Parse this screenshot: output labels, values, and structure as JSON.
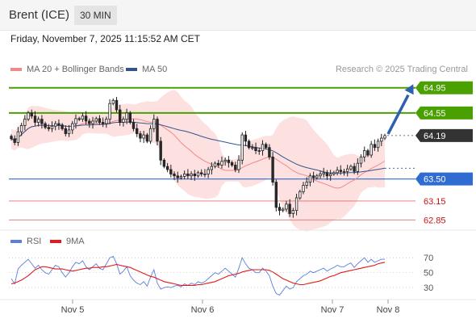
{
  "header": {
    "instrument": "Brent (ICE)",
    "timeframe": "30 MIN"
  },
  "datetime": "Friday, November 7, 2025 11:15:52 AM CET",
  "legend": {
    "ma20": {
      "label": "MA 20 + Bollinger Bands",
      "color": "#f08a8a"
    },
    "ma50": {
      "label": "MA 50",
      "color": "#35558a"
    },
    "research": "Research © 2025 Trading Central",
    "rsi": {
      "label": "RSI",
      "color": "#5b7fde"
    },
    "rsi_ma": {
      "label": "9MA",
      "color": "#e31a1c"
    }
  },
  "chart_data": {
    "type": "candlestick",
    "x_ticks": [
      "Nov 5",
      "Nov 6",
      "Nov 7",
      "Nov 8"
    ],
    "price_range": [
      62.7,
      65.1
    ],
    "levels": [
      {
        "value": 64.95,
        "label": "64.95",
        "kind": "resistance",
        "color": "#4aa000"
      },
      {
        "value": 64.55,
        "label": "64.55",
        "kind": "resistance",
        "color": "#4aa000"
      },
      {
        "value": 64.19,
        "label": "64.19",
        "kind": "last",
        "color": "#333333"
      },
      {
        "value": 63.5,
        "label": "63.50",
        "kind": "pivot",
        "color": "#2f6bd0"
      },
      {
        "value": 63.15,
        "label": "63.15",
        "kind": "support",
        "color": "#cc1111"
      },
      {
        "value": 62.85,
        "label": "62.85",
        "kind": "support",
        "color": "#cc1111"
      }
    ],
    "close": [
      64.14,
      64.08,
      64.25,
      64.35,
      64.45,
      64.55,
      64.5,
      64.4,
      64.45,
      64.38,
      64.32,
      64.3,
      64.34,
      64.38,
      64.36,
      64.3,
      64.22,
      64.28,
      64.38,
      64.46,
      64.45,
      64.5,
      64.42,
      64.38,
      64.42,
      64.46,
      64.4,
      64.38,
      64.45,
      64.7,
      64.75,
      64.6,
      64.4,
      64.45,
      64.55,
      64.4,
      64.3,
      64.22,
      64.15,
      64.2,
      64.1,
      64.3,
      64.45,
      64.1,
      63.8,
      63.7,
      63.65,
      63.58,
      63.55,
      63.52,
      63.54,
      63.58,
      63.55,
      63.58,
      63.55,
      63.6,
      63.58,
      63.58,
      63.65,
      63.7,
      63.75,
      63.72,
      63.78,
      63.8,
      63.76,
      63.72,
      63.65,
      63.8,
      64.2,
      64.1,
      64.0,
      64.0,
      63.95,
      63.95,
      64.05,
      64.0,
      63.85,
      63.45,
      63.05,
      63.0,
      63.02,
      63.1,
      62.95,
      63.0,
      63.2,
      63.3,
      63.4,
      63.45,
      63.55,
      63.52,
      63.55,
      63.58,
      63.6,
      63.55,
      63.58,
      63.6,
      63.64,
      63.62,
      63.62,
      63.66,
      63.7,
      63.62,
      63.75,
      63.85,
      63.95,
      63.88,
      64.05,
      64.0,
      64.1,
      64.15,
      64.19
    ],
    "rsi_range": [
      15,
      80
    ],
    "rsi_ticks": [
      70,
      50,
      30
    ],
    "rsi": [
      42,
      35,
      55,
      60,
      64,
      68,
      62,
      56,
      60,
      54,
      50,
      48,
      54,
      60,
      58,
      50,
      44,
      50,
      58,
      64,
      62,
      66,
      58,
      54,
      58,
      62,
      56,
      54,
      62,
      70,
      72,
      62,
      48,
      52,
      58,
      46,
      40,
      36,
      34,
      38,
      32,
      44,
      54,
      36,
      28,
      30,
      31,
      30,
      32,
      33,
      31,
      35,
      33,
      36,
      34,
      38,
      36,
      38,
      42,
      46,
      50,
      48,
      52,
      56,
      52,
      48,
      44,
      56,
      70,
      62,
      56,
      54,
      50,
      50,
      56,
      52,
      46,
      32,
      22,
      20,
      26,
      32,
      28,
      30,
      38,
      42,
      46,
      48,
      52,
      50,
      52,
      54,
      56,
      52,
      55,
      57,
      60,
      58,
      58,
      61,
      63,
      57,
      62,
      66,
      70,
      64,
      68,
      64,
      66,
      68,
      68
    ],
    "rsi_ma": [
      35,
      36,
      38,
      40,
      43,
      46,
      50,
      54,
      56,
      58,
      58,
      57,
      56,
      55,
      55,
      55,
      54,
      53,
      52,
      53,
      54,
      55,
      56,
      56,
      57,
      57,
      57,
      58,
      58,
      59,
      60,
      61,
      60,
      59,
      58,
      57,
      55,
      53,
      51,
      49,
      47,
      45,
      44,
      42,
      40,
      38,
      37,
      36,
      35,
      34,
      33,
      33,
      33,
      33,
      33,
      34,
      34,
      35,
      36,
      37,
      38,
      40,
      42,
      44,
      46,
      47,
      48,
      49,
      51,
      52,
      53,
      54,
      54,
      54,
      54,
      54,
      53,
      51,
      48,
      45,
      42,
      40,
      38,
      36,
      35,
      34,
      34,
      35,
      36,
      37,
      38,
      39,
      41,
      43,
      45,
      46,
      48,
      50,
      51,
      52,
      53,
      54,
      55,
      56,
      57,
      58,
      59,
      60,
      62,
      63,
      64
    ]
  }
}
